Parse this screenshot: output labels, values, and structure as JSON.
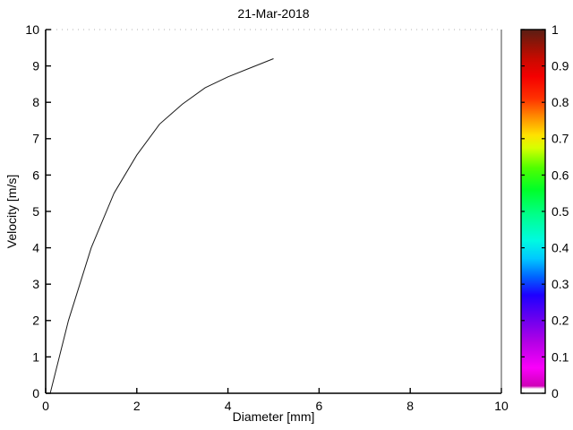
{
  "figure": {
    "background": "#ffffff",
    "text_color": "#000000"
  },
  "chart_data": {
    "type": "line",
    "title": "21-Mar-2018",
    "xlabel": "Diameter [mm]",
    "ylabel": "Velocity [m/s]",
    "xlim": [
      0,
      10
    ],
    "ylim": [
      0,
      10
    ],
    "grid": false,
    "xticks": [
      0,
      2,
      4,
      6,
      8,
      10
    ],
    "xtick_labels": [
      "0",
      "2",
      "4",
      "6",
      "8",
      "10"
    ],
    "yticks": [
      0,
      1,
      2,
      3,
      4,
      5,
      6,
      7,
      8,
      9,
      10
    ],
    "ytick_labels": [
      "0",
      "1",
      "2",
      "3",
      "4",
      "5",
      "6",
      "7",
      "8",
      "9",
      "10"
    ],
    "frame": {
      "axis_color": "#000000",
      "right_border_color": "#444444",
      "top_border_color": "#b0b0b0",
      "top_border_style": "dotted"
    },
    "series": [
      {
        "name": "terminal-velocity-curve",
        "color": "#1a1a1a",
        "x": [
          0.1,
          0.5,
          1.0,
          1.5,
          2.0,
          2.5,
          3.0,
          3.5,
          4.0,
          4.5,
          5.0
        ],
        "y": [
          0.0,
          2.0,
          4.0,
          5.5,
          6.55,
          7.4,
          7.95,
          8.4,
          8.7,
          8.95,
          9.2
        ]
      }
    ],
    "colorbar": {
      "min": 0,
      "max": 1,
      "ticks": [
        0,
        0.1,
        0.2,
        0.3,
        0.4,
        0.5,
        0.6,
        0.7,
        0.8,
        0.9,
        1
      ],
      "tick_labels": [
        "0",
        "0.1",
        "0.2",
        "0.3",
        "0.4",
        "0.5",
        "0.6",
        "0.7",
        "0.8",
        "0.9",
        "1"
      ],
      "border_color": "#000000",
      "gradient_bottom_to_top": [
        {
          "pos": 0.0,
          "color": "#ffffff"
        },
        {
          "pos": 0.012,
          "color": "#ffffff"
        },
        {
          "pos": 0.02,
          "color": "#cf00b8"
        },
        {
          "pos": 0.07,
          "color": "#fa00fa"
        },
        {
          "pos": 0.14,
          "color": "#b400e6"
        },
        {
          "pos": 0.21,
          "color": "#6400f0"
        },
        {
          "pos": 0.27,
          "color": "#1e00ff"
        },
        {
          "pos": 0.32,
          "color": "#0064ff"
        },
        {
          "pos": 0.37,
          "color": "#00c8ff"
        },
        {
          "pos": 0.42,
          "color": "#00fae1"
        },
        {
          "pos": 0.49,
          "color": "#00ff8c"
        },
        {
          "pos": 0.56,
          "color": "#00ff28"
        },
        {
          "pos": 0.62,
          "color": "#50ff00"
        },
        {
          "pos": 0.675,
          "color": "#d7ff00"
        },
        {
          "pos": 0.71,
          "color": "#ffe100"
        },
        {
          "pos": 0.76,
          "color": "#ff8c00"
        },
        {
          "pos": 0.81,
          "color": "#ff3200"
        },
        {
          "pos": 0.87,
          "color": "#f50000"
        },
        {
          "pos": 0.92,
          "color": "#c80a00"
        },
        {
          "pos": 0.96,
          "color": "#911407"
        },
        {
          "pos": 1.0,
          "color": "#5a1e14"
        }
      ]
    }
  }
}
